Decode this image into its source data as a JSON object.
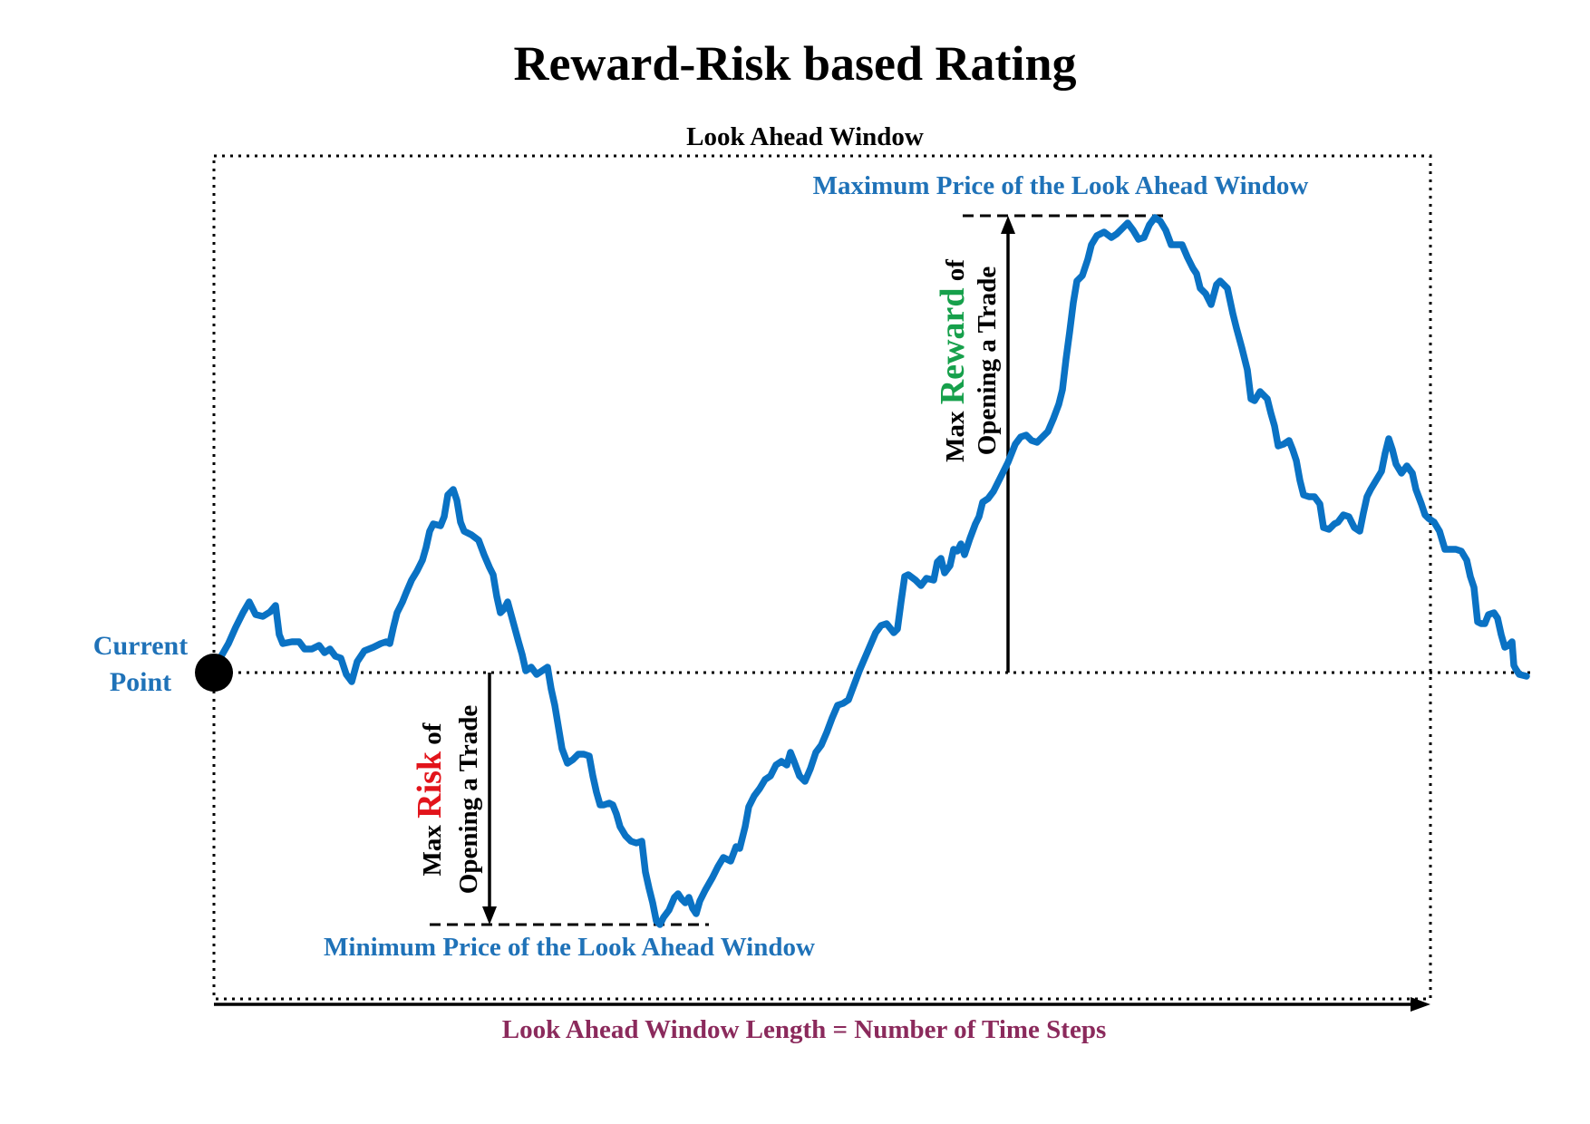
{
  "title": "Reward-Risk based Rating",
  "window_label": "Look Ahead Window",
  "labels": {
    "current_point_1": "Current",
    "current_point_2": "Point",
    "max_price": "Maximum Price of the Look Ahead Window",
    "min_price": "Minimum Price of the Look Ahead Window",
    "window_length": "Look Ahead Window Length = Number of Time Steps",
    "reward_prefix": "Max ",
    "reward_word": "Reward",
    "reward_suffix": " of",
    "reward_line2": "Opening a Trade",
    "risk_prefix": "Max ",
    "risk_word": "Risk",
    "risk_suffix": " of",
    "risk_line2": "Opening a Trade"
  },
  "colors": {
    "price_path": "#0a72c4",
    "blue_labels": "#1f72b8",
    "reward": "#16a04b",
    "risk": "#e2141b",
    "window_length_label": "#8b2a5c"
  }
}
